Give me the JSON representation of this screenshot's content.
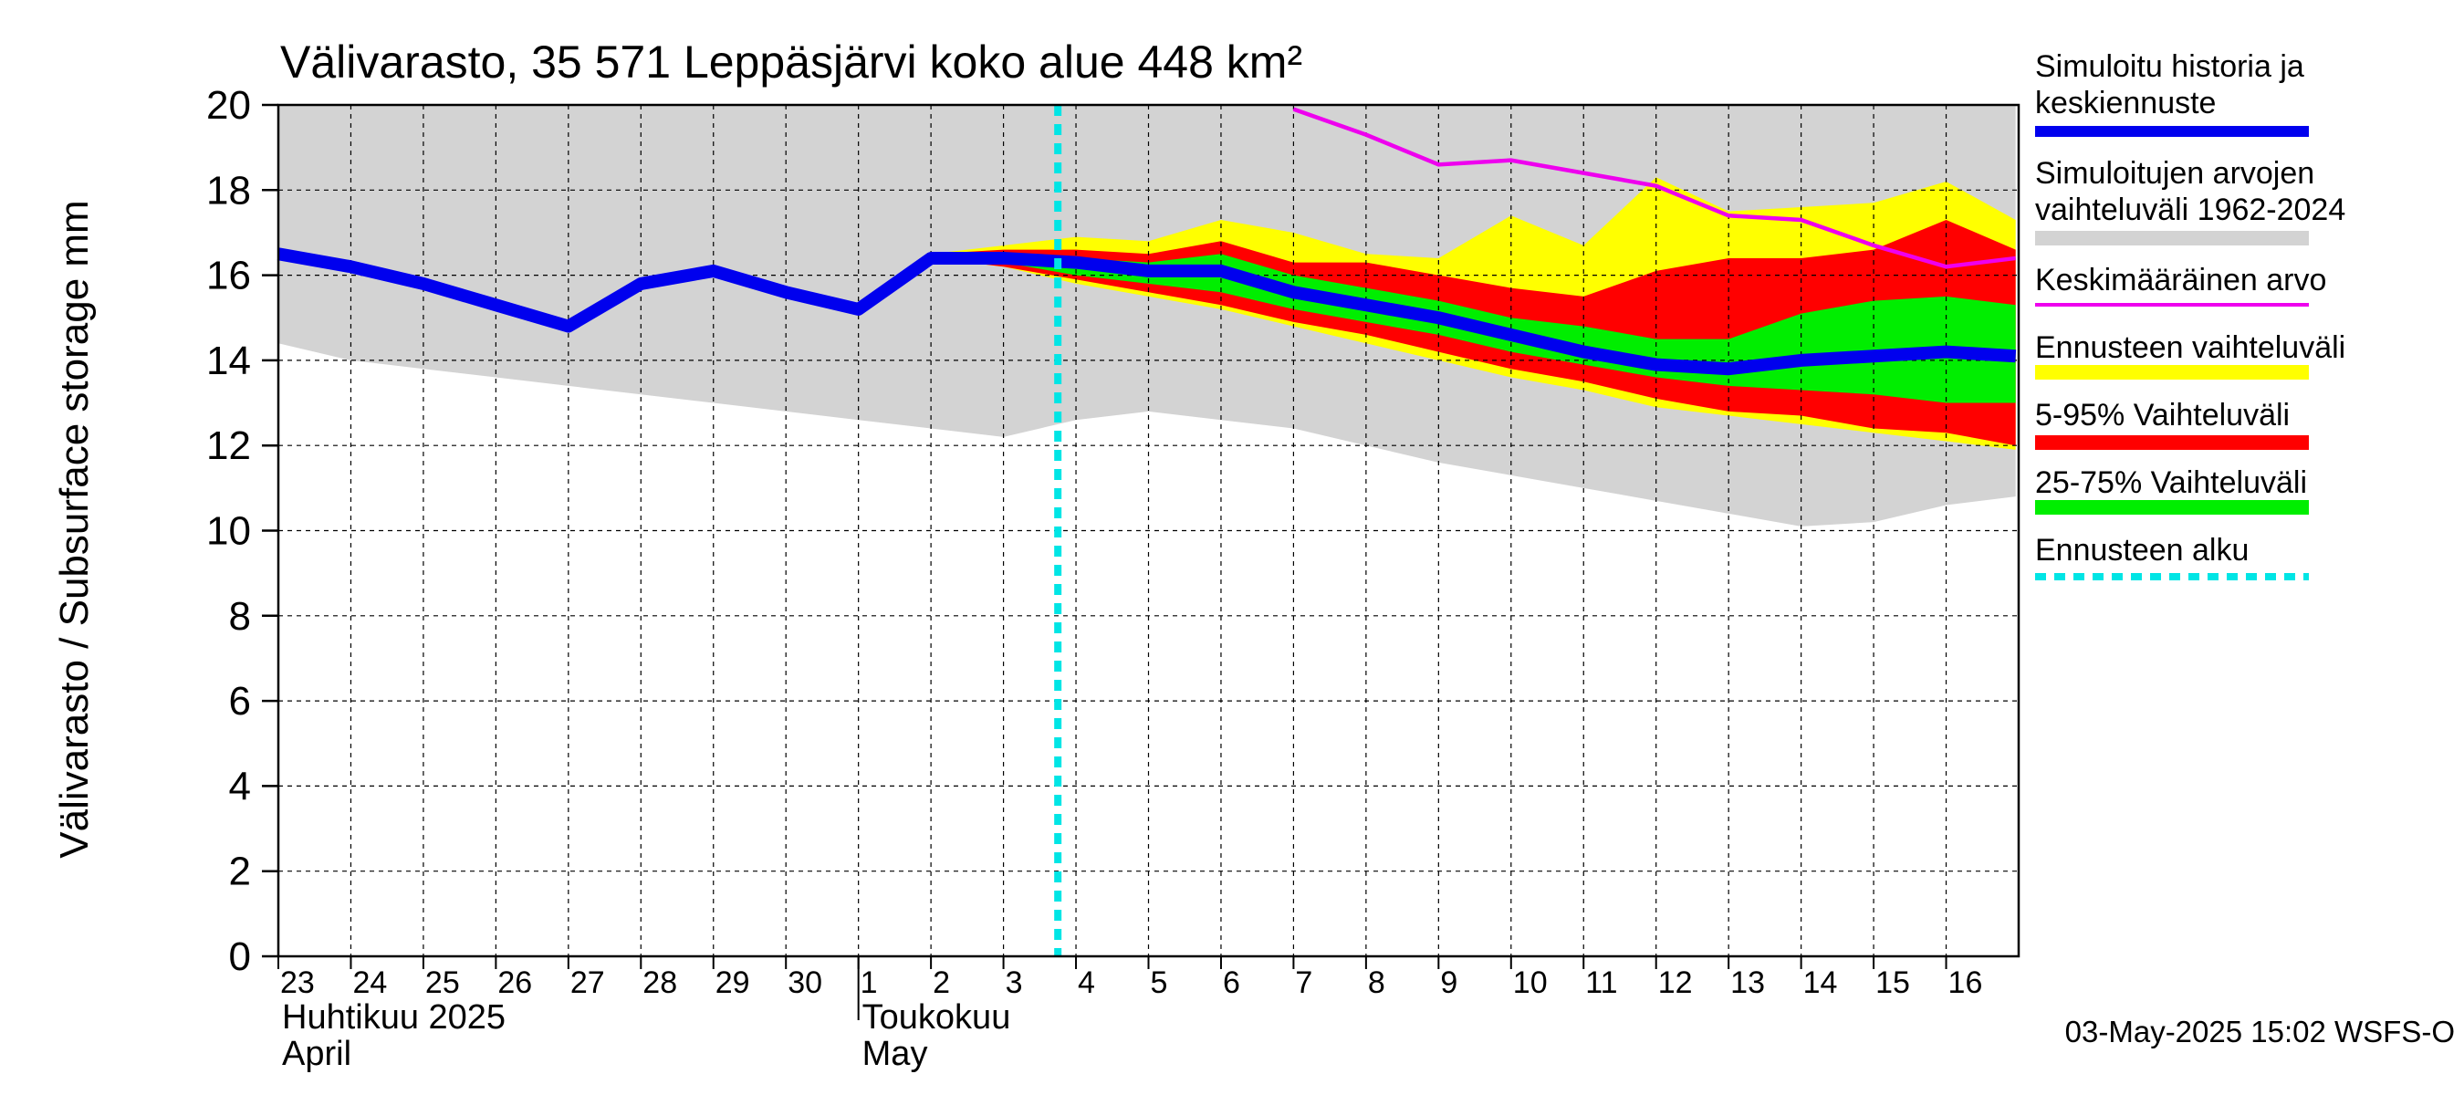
{
  "chart_data": {
    "type": "area",
    "title": "Välivarasto, 35 571 Leppäsjärvi koko alue 448 km²",
    "ylabel": "Välivarasto / Subsurface storage  mm",
    "ylim": [
      0,
      20
    ],
    "yticks": [
      0,
      2,
      4,
      6,
      8,
      10,
      12,
      14,
      16,
      18,
      20
    ],
    "xrange": [
      "2025-04-23",
      "2025-05-16"
    ],
    "xticks": [
      "23",
      "24",
      "25",
      "26",
      "27",
      "28",
      "29",
      "30",
      "1",
      "2",
      "3",
      "4",
      "5",
      "6",
      "7",
      "8",
      "9",
      "10",
      "11",
      "12",
      "13",
      "14",
      "15",
      "16"
    ],
    "month_labels": [
      {
        "start": "2025-04-23",
        "fi": "Huhtikuu  2025",
        "en": "April"
      },
      {
        "start": "2025-05-01",
        "fi": "Toukokuu",
        "en": "May"
      }
    ],
    "grid": true,
    "legend_position": "right",
    "footer": "03-May-2025 15:02 WSFS-O",
    "forecast_start": "2025-05-03",
    "colors": {
      "history": "#0000ee",
      "sim_range": "#d3d3d3",
      "mean": "#ee00ee",
      "forecast_range": "#ffff00",
      "p5_95": "#ff0000",
      "p25_75": "#00ee00",
      "forecast_start": "#00e5e5"
    },
    "legend": [
      {
        "key": "history",
        "lines": [
          "Simuloitu historia ja",
          "keskiennuste"
        ],
        "style": "thick-line"
      },
      {
        "key": "sim_range",
        "lines": [
          "Simuloitujen arvojen",
          "vaihteluväli 1962-2024"
        ],
        "style": "band"
      },
      {
        "key": "mean",
        "lines": [
          "Keskimääräinen arvo"
        ],
        "style": "thin-line"
      },
      {
        "key": "forecast_range",
        "lines": [
          "Ennusteen vaihteluväli"
        ],
        "style": "band"
      },
      {
        "key": "p5_95",
        "lines": [
          "5-95% Vaihteluväli"
        ],
        "style": "band"
      },
      {
        "key": "p25_75",
        "lines": [
          "25-75% Vaihteluväli"
        ],
        "style": "band"
      },
      {
        "key": "forecast_start",
        "lines": [
          "Ennusteen alku"
        ],
        "style": "dashed-line"
      }
    ],
    "series": {
      "sim_range": {
        "x": [
          "2025-04-23",
          "2025-04-24",
          "2025-04-25",
          "2025-04-26",
          "2025-04-27",
          "2025-04-28",
          "2025-04-29",
          "2025-04-30",
          "2025-05-01",
          "2025-05-02",
          "2025-05-03",
          "2025-05-04",
          "2025-05-05",
          "2025-05-06",
          "2025-05-07",
          "2025-05-08",
          "2025-05-09",
          "2025-05-10",
          "2025-05-11",
          "2025-05-12",
          "2025-05-13",
          "2025-05-14",
          "2025-05-15",
          "2025-05-16",
          "2025-05-16T23:00"
        ],
        "upper": [
          20,
          20,
          20,
          20,
          20,
          20,
          20,
          20,
          20,
          20,
          20,
          20,
          20,
          20,
          20,
          20,
          20,
          20,
          20,
          20,
          20,
          20,
          20,
          20,
          20
        ],
        "lower": [
          14.4,
          14.0,
          13.8,
          13.6,
          13.4,
          13.2,
          13.0,
          12.8,
          12.6,
          12.4,
          12.2,
          12.6,
          12.8,
          12.6,
          12.4,
          12.0,
          11.6,
          11.3,
          11.0,
          10.7,
          10.4,
          10.1,
          10.2,
          10.6,
          10.8
        ]
      },
      "forecast_range": {
        "x": [
          "2025-05-02",
          "2025-05-03",
          "2025-05-04",
          "2025-05-05",
          "2025-05-06",
          "2025-05-07",
          "2025-05-08",
          "2025-05-09",
          "2025-05-10",
          "2025-05-11",
          "2025-05-12",
          "2025-05-13",
          "2025-05-14",
          "2025-05-15",
          "2025-05-16",
          "2025-05-16T23:00"
        ],
        "upper": [
          16.5,
          16.7,
          16.9,
          16.8,
          17.3,
          17.0,
          16.5,
          16.4,
          17.4,
          16.7,
          18.3,
          17.5,
          17.6,
          17.7,
          18.2,
          17.3
        ],
        "lower": [
          16.4,
          16.2,
          15.8,
          15.5,
          15.2,
          14.8,
          14.4,
          14.0,
          13.6,
          13.3,
          12.9,
          12.7,
          12.5,
          12.3,
          12.1,
          11.9
        ]
      },
      "p5_95": {
        "x": [
          "2025-05-02",
          "2025-05-03",
          "2025-05-04",
          "2025-05-05",
          "2025-05-06",
          "2025-05-07",
          "2025-05-08",
          "2025-05-09",
          "2025-05-10",
          "2025-05-11",
          "2025-05-12",
          "2025-05-13",
          "2025-05-14",
          "2025-05-15",
          "2025-05-16",
          "2025-05-16T23:00"
        ],
        "upper": [
          16.5,
          16.6,
          16.6,
          16.5,
          16.8,
          16.3,
          16.3,
          16.0,
          15.7,
          15.5,
          16.1,
          16.4,
          16.4,
          16.6,
          17.3,
          16.6
        ],
        "lower": [
          16.4,
          16.2,
          15.9,
          15.6,
          15.3,
          14.9,
          14.6,
          14.2,
          13.8,
          13.5,
          13.1,
          12.8,
          12.7,
          12.4,
          12.3,
          12.0
        ]
      },
      "p25_75": {
        "x": [
          "2025-05-02",
          "2025-05-03",
          "2025-05-04",
          "2025-05-05",
          "2025-05-06",
          "2025-05-07",
          "2025-05-08",
          "2025-05-09",
          "2025-05-10",
          "2025-05-11",
          "2025-05-12",
          "2025-05-13",
          "2025-05-14",
          "2025-05-15",
          "2025-05-16",
          "2025-05-16T23:00"
        ],
        "upper": [
          16.45,
          16.45,
          16.4,
          16.3,
          16.5,
          16.0,
          15.7,
          15.4,
          15.0,
          14.8,
          14.5,
          14.5,
          15.1,
          15.4,
          15.5,
          15.3
        ],
        "lower": [
          16.4,
          16.3,
          16.0,
          15.8,
          15.6,
          15.2,
          14.9,
          14.6,
          14.2,
          13.9,
          13.6,
          13.4,
          13.3,
          13.2,
          13.0,
          13.0
        ]
      },
      "history": {
        "x": [
          "2025-04-23",
          "2025-04-24",
          "2025-04-25",
          "2025-04-26",
          "2025-04-27",
          "2025-04-28",
          "2025-04-29",
          "2025-04-30",
          "2025-05-01",
          "2025-05-02",
          "2025-05-03",
          "2025-05-04",
          "2025-05-05",
          "2025-05-06",
          "2025-05-07",
          "2025-05-08",
          "2025-05-09",
          "2025-05-10",
          "2025-05-11",
          "2025-05-12",
          "2025-05-13",
          "2025-05-14",
          "2025-05-15",
          "2025-05-16",
          "2025-05-16T23:00"
        ],
        "y": [
          16.5,
          16.2,
          15.8,
          15.3,
          14.8,
          15.8,
          16.1,
          15.6,
          15.2,
          16.4,
          16.4,
          16.3,
          16.1,
          16.1,
          15.6,
          15.3,
          15.0,
          14.6,
          14.2,
          13.9,
          13.8,
          14.0,
          14.1,
          14.2,
          14.1
        ]
      },
      "mean": {
        "x": [
          "2025-05-07",
          "2025-05-08",
          "2025-05-09",
          "2025-05-10",
          "2025-05-11",
          "2025-05-12",
          "2025-05-13",
          "2025-05-14",
          "2025-05-15",
          "2025-05-16",
          "2025-05-16T23:00"
        ],
        "y": [
          19.9,
          19.3,
          18.6,
          18.7,
          18.4,
          18.1,
          17.4,
          17.3,
          16.7,
          16.2,
          16.4
        ]
      }
    }
  }
}
